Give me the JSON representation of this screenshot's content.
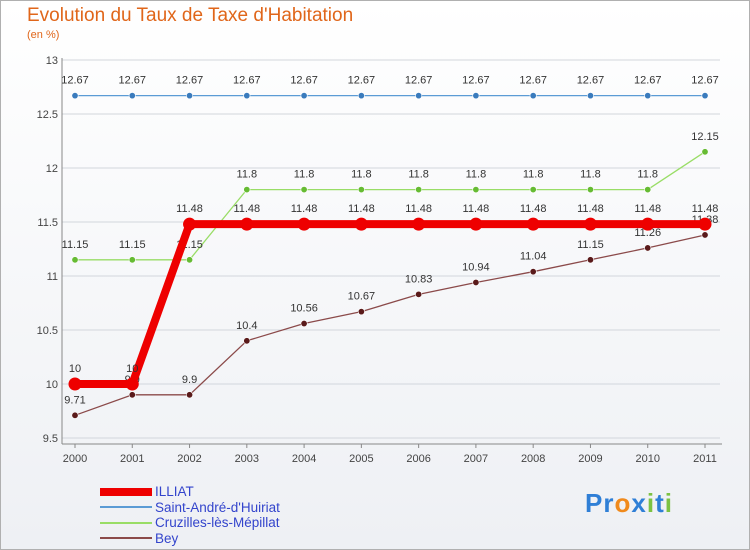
{
  "chart_data": {
    "type": "line",
    "title": "Evolution du Taux de Taxe d'Habitation",
    "subtitle": "(en %)",
    "ylim": [
      9.5,
      13
    ],
    "yticks": [
      "9.5",
      "10",
      "10.5",
      "11",
      "11.5",
      "12",
      "12.5",
      "13"
    ],
    "categories": [
      "2000",
      "2001",
      "2002",
      "2003",
      "2004",
      "2005",
      "2006",
      "2007",
      "2008",
      "2009",
      "2010",
      "2011"
    ],
    "series": [
      {
        "name": "Saint-André-d'Huiriat",
        "color": "#5b9bd5",
        "marker": "#3a7bbd",
        "values": [
          12.67,
          12.67,
          12.67,
          12.67,
          12.67,
          12.67,
          12.67,
          12.67,
          12.67,
          12.67,
          12.67,
          12.67
        ],
        "labels": [
          "12.67",
          "12.67",
          "12.67",
          "12.67",
          "12.67",
          "12.67",
          "12.67",
          "12.67",
          "12.67",
          "12.67",
          "12.67",
          "12.67"
        ]
      },
      {
        "name": "Cruzilles-lès-Mépillat",
        "color": "#99dd66",
        "marker": "#66bb33",
        "values": [
          11.15,
          11.15,
          11.15,
          11.8,
          11.8,
          11.8,
          11.8,
          11.8,
          11.8,
          11.8,
          11.8,
          12.15
        ],
        "labels": [
          "11.15",
          "11.15",
          "11.15",
          "11.8",
          "11.8",
          "11.8",
          "11.8",
          "11.8",
          "11.8",
          "11.8",
          "11.8",
          "12.15"
        ]
      },
      {
        "name": "Bey",
        "color": "#8b4a4a",
        "marker": "#5a1a1a",
        "values": [
          9.71,
          9.9,
          9.9,
          10.4,
          10.56,
          10.67,
          10.83,
          10.94,
          11.04,
          11.15,
          11.26,
          11.38
        ],
        "labels": [
          "9.71",
          "9.9",
          "9.9",
          "10.4",
          "10.56",
          "10.67",
          "10.83",
          "10.94",
          "11.04",
          "11.15",
          "11.26",
          "11.38"
        ]
      },
      {
        "name": "ILLIAT",
        "color": "#ee0000",
        "marker": "#ee0000",
        "values": [
          10,
          10,
          11.48,
          11.48,
          11.48,
          11.48,
          11.48,
          11.48,
          11.48,
          11.48,
          11.48,
          11.48
        ],
        "labels": [
          "10",
          "10",
          "11.48",
          "11.48",
          "11.48",
          "11.48",
          "11.48",
          "11.48",
          "11.48",
          "11.48",
          "11.48",
          "11.48"
        ]
      }
    ],
    "legend": [
      "ILLIAT",
      "Saint-André-d'Huiriat",
      "Cruzilles-lès-Mépillat",
      "Bey"
    ]
  },
  "legend_colors": [
    "#ee0000",
    "#5b9bd5",
    "#99dd66",
    "#8b4a4a"
  ],
  "logo": {
    "letters": [
      "P",
      "r",
      "o",
      "x",
      "i",
      "t",
      "i"
    ],
    "colors": [
      "#2f7fd6",
      "#2f7fd6",
      "#f08a1c",
      "#2f7fd6",
      "#7cc242",
      "#2f7fd6",
      "#7cc242"
    ]
  }
}
